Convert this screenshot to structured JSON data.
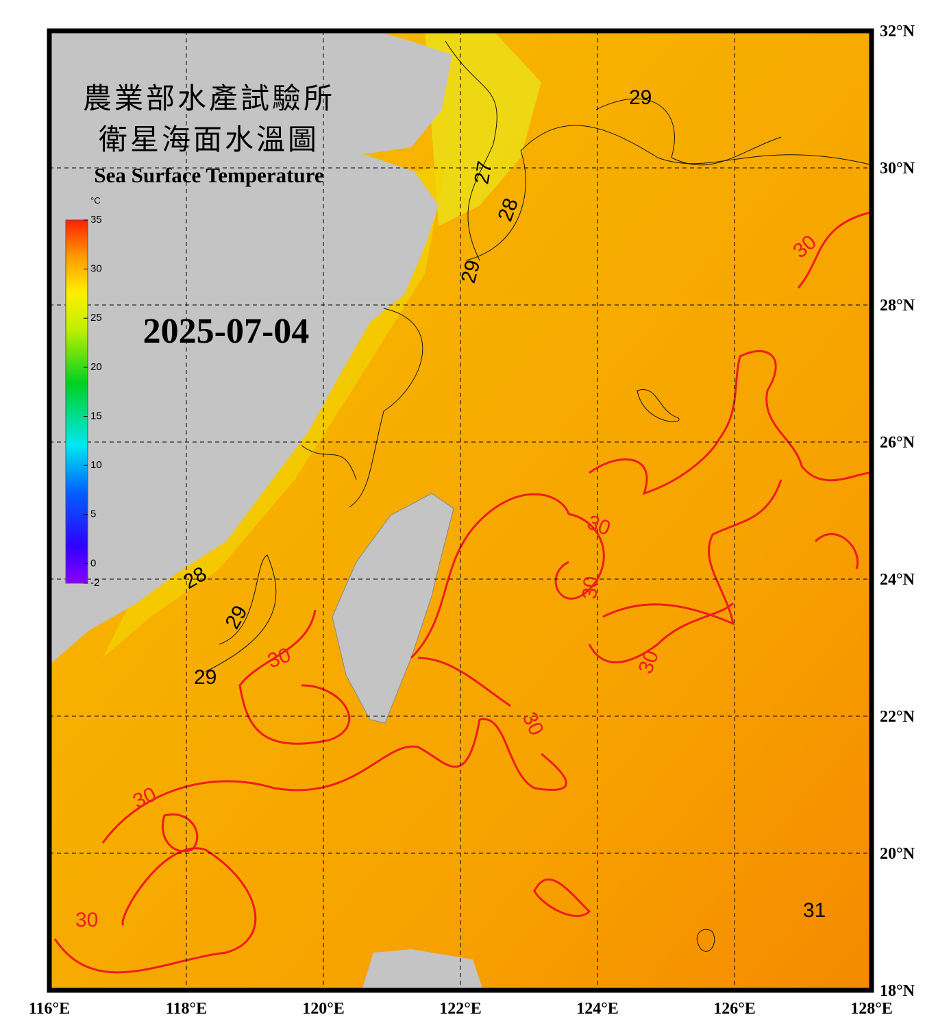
{
  "header": {
    "title_zh_1": "農業部水產試驗所",
    "title_zh_2": "衛星海面水溫圖",
    "title_en": "Sea Surface Temperature"
  },
  "date": "2025-07-04",
  "colorbar": {
    "unit": "°C",
    "ticks": [
      35,
      30,
      25,
      20,
      15,
      10,
      5,
      0,
      -2
    ],
    "range": [
      -2,
      35
    ]
  },
  "map": {
    "lon_range": [
      116,
      128
    ],
    "lat_range": [
      18,
      32
    ],
    "lon_ticks": [
      {
        "value": 116,
        "label": "116°E"
      },
      {
        "value": 118,
        "label": "118°E"
      },
      {
        "value": 120,
        "label": "120°E"
      },
      {
        "value": 122,
        "label": "122°E"
      },
      {
        "value": 124,
        "label": "124°E"
      },
      {
        "value": 126,
        "label": "126°E"
      },
      {
        "value": 128,
        "label": "128°E"
      }
    ],
    "lat_ticks": [
      {
        "value": 32,
        "label": "32°N"
      },
      {
        "value": 30,
        "label": "30°N"
      },
      {
        "value": 28,
        "label": "28°N"
      },
      {
        "value": 26,
        "label": "26°N"
      },
      {
        "value": 24,
        "label": "24°N"
      },
      {
        "value": 22,
        "label": "22°N"
      },
      {
        "value": 20,
        "label": "20°N"
      },
      {
        "value": 18,
        "label": "18°N"
      }
    ]
  },
  "contour_labels": [
    29,
    27,
    28,
    29,
    28,
    29,
    29,
    30,
    30,
    30,
    30,
    30,
    30,
    30,
    30,
    31
  ]
}
